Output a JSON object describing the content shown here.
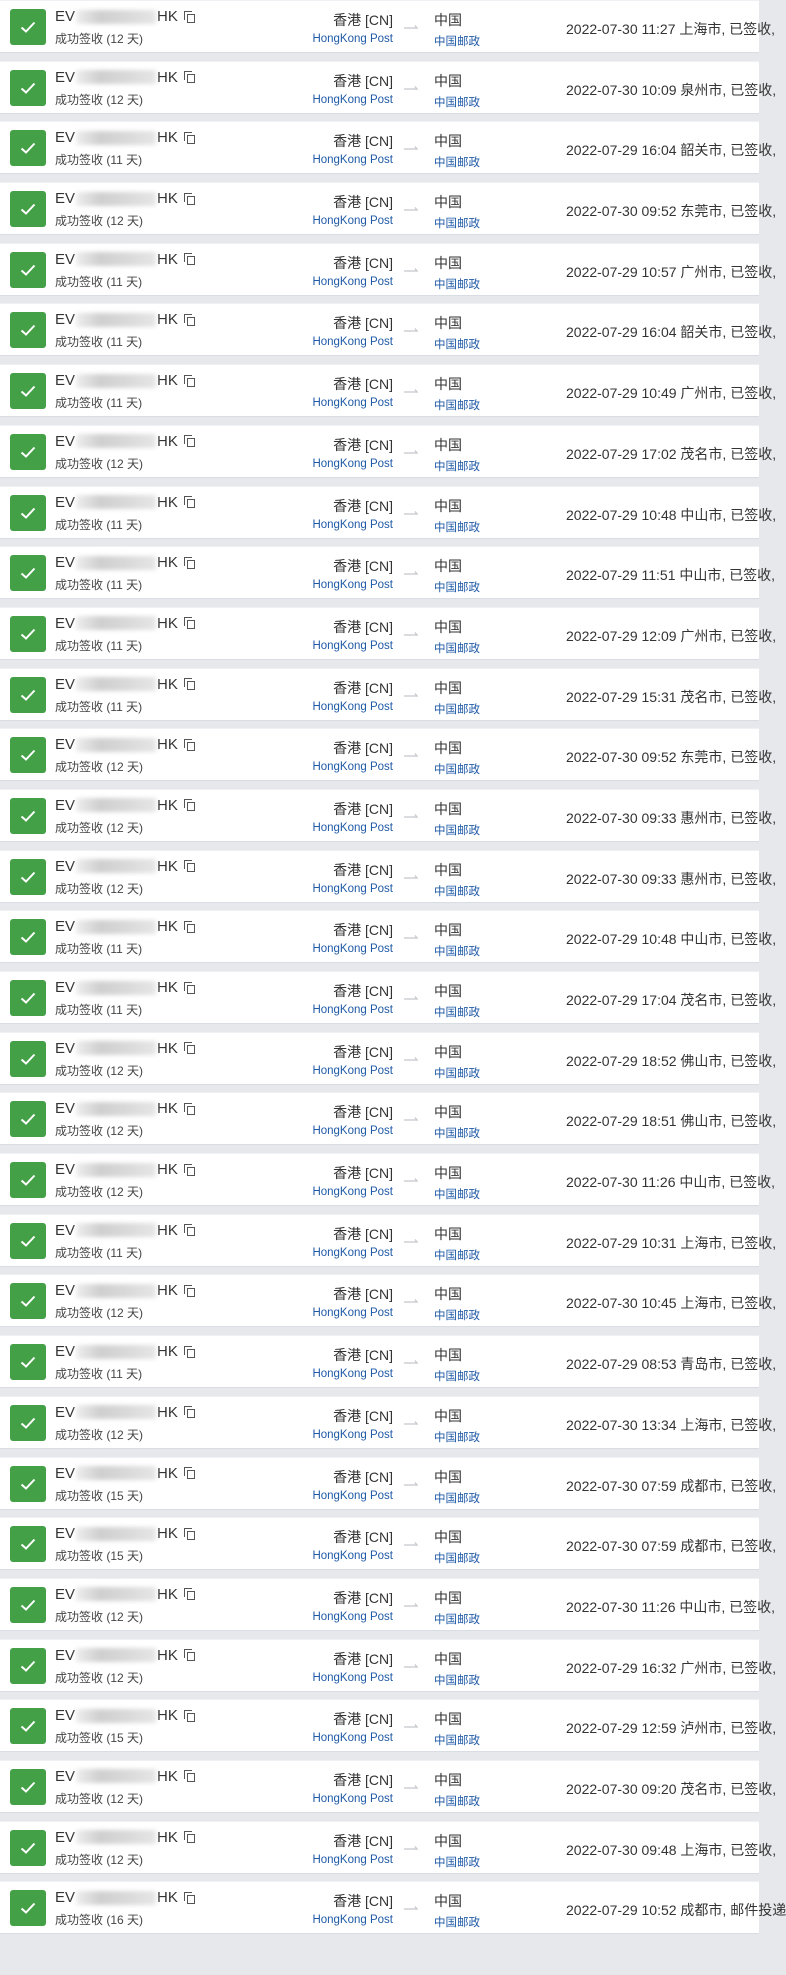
{
  "colors": {
    "status_ok": "#43a047",
    "carrier_link": "#1f5aa6"
  },
  "shipments": [
    {
      "prefix": "EV",
      "suffix": "HK",
      "status": "成功签收 (12 天)",
      "origin": "香港 [CN]",
      "origin_carrier": "HongKong Post",
      "dest": "中国",
      "dest_carrier": "中国邮政",
      "event": "2022-07-30 11:27 上海市, 已签收,"
    },
    {
      "prefix": "EV",
      "suffix": "HK",
      "status": "成功签收 (12 天)",
      "origin": "香港 [CN]",
      "origin_carrier": "HongKong Post",
      "dest": "中国",
      "dest_carrier": "中国邮政",
      "event": "2022-07-30 10:09 泉州市, 已签收,"
    },
    {
      "prefix": "EV",
      "suffix": "HK",
      "status": "成功签收 (11 天)",
      "origin": "香港 [CN]",
      "origin_carrier": "HongKong Post",
      "dest": "中国",
      "dest_carrier": "中国邮政",
      "event": "2022-07-29 16:04 韶关市, 已签收,"
    },
    {
      "prefix": "EV",
      "suffix": "HK",
      "status": "成功签收 (12 天)",
      "origin": "香港 [CN]",
      "origin_carrier": "HongKong Post",
      "dest": "中国",
      "dest_carrier": "中国邮政",
      "event": "2022-07-30 09:52 东莞市, 已签收,"
    },
    {
      "prefix": "EV",
      "suffix": "HK",
      "status": "成功签收 (11 天)",
      "origin": "香港 [CN]",
      "origin_carrier": "HongKong Post",
      "dest": "中国",
      "dest_carrier": "中国邮政",
      "event": "2022-07-29 10:57 广州市, 已签收,"
    },
    {
      "prefix": "EV",
      "suffix": "HK",
      "status": "成功签收 (11 天)",
      "origin": "香港 [CN]",
      "origin_carrier": "HongKong Post",
      "dest": "中国",
      "dest_carrier": "中国邮政",
      "event": "2022-07-29 16:04 韶关市, 已签收,"
    },
    {
      "prefix": "EV",
      "suffix": "HK",
      "status": "成功签收 (11 天)",
      "origin": "香港 [CN]",
      "origin_carrier": "HongKong Post",
      "dest": "中国",
      "dest_carrier": "中国邮政",
      "event": "2022-07-29 10:49 广州市, 已签收,"
    },
    {
      "prefix": "EV",
      "suffix": "HK",
      "status": "成功签收 (12 天)",
      "origin": "香港 [CN]",
      "origin_carrier": "HongKong Post",
      "dest": "中国",
      "dest_carrier": "中国邮政",
      "event": "2022-07-29 17:02 茂名市, 已签收,"
    },
    {
      "prefix": "EV",
      "suffix": "HK",
      "status": "成功签收 (11 天)",
      "origin": "香港 [CN]",
      "origin_carrier": "HongKong Post",
      "dest": "中国",
      "dest_carrier": "中国邮政",
      "event": "2022-07-29 10:48 中山市, 已签收,"
    },
    {
      "prefix": "EV",
      "suffix": "HK",
      "status": "成功签收 (11 天)",
      "origin": "香港 [CN]",
      "origin_carrier": "HongKong Post",
      "dest": "中国",
      "dest_carrier": "中国邮政",
      "event": "2022-07-29 11:51 中山市, 已签收,"
    },
    {
      "prefix": "EV",
      "suffix": "HK",
      "status": "成功签收 (11 天)",
      "origin": "香港 [CN]",
      "origin_carrier": "HongKong Post",
      "dest": "中国",
      "dest_carrier": "中国邮政",
      "event": "2022-07-29 12:09 广州市, 已签收,"
    },
    {
      "prefix": "EV",
      "suffix": "HK",
      "status": "成功签收 (11 天)",
      "origin": "香港 [CN]",
      "origin_carrier": "HongKong Post",
      "dest": "中国",
      "dest_carrier": "中国邮政",
      "event": "2022-07-29 15:31 茂名市, 已签收,"
    },
    {
      "prefix": "EV",
      "suffix": "HK",
      "status": "成功签收 (12 天)",
      "origin": "香港 [CN]",
      "origin_carrier": "HongKong Post",
      "dest": "中国",
      "dest_carrier": "中国邮政",
      "event": "2022-07-30 09:52 东莞市, 已签收,"
    },
    {
      "prefix": "EV",
      "suffix": "HK",
      "status": "成功签收 (12 天)",
      "origin": "香港 [CN]",
      "origin_carrier": "HongKong Post",
      "dest": "中国",
      "dest_carrier": "中国邮政",
      "event": "2022-07-30 09:33 惠州市, 已签收,"
    },
    {
      "prefix": "EV",
      "suffix": "HK",
      "status": "成功签收 (12 天)",
      "origin": "香港 [CN]",
      "origin_carrier": "HongKong Post",
      "dest": "中国",
      "dest_carrier": "中国邮政",
      "event": "2022-07-30 09:33 惠州市, 已签收,"
    },
    {
      "prefix": "EV",
      "suffix": "HK",
      "status": "成功签收 (11 天)",
      "origin": "香港 [CN]",
      "origin_carrier": "HongKong Post",
      "dest": "中国",
      "dest_carrier": "中国邮政",
      "event": "2022-07-29 10:48 中山市, 已签收,"
    },
    {
      "prefix": "EV",
      "suffix": "HK",
      "status": "成功签收 (11 天)",
      "origin": "香港 [CN]",
      "origin_carrier": "HongKong Post",
      "dest": "中国",
      "dest_carrier": "中国邮政",
      "event": "2022-07-29 17:04 茂名市, 已签收,"
    },
    {
      "prefix": "EV",
      "suffix": "HK",
      "status": "成功签收 (12 天)",
      "origin": "香港 [CN]",
      "origin_carrier": "HongKong Post",
      "dest": "中国",
      "dest_carrier": "中国邮政",
      "event": "2022-07-29 18:52 佛山市, 已签收,"
    },
    {
      "prefix": "EV",
      "suffix": "HK",
      "status": "成功签收 (12 天)",
      "origin": "香港 [CN]",
      "origin_carrier": "HongKong Post",
      "dest": "中国",
      "dest_carrier": "中国邮政",
      "event": "2022-07-29 18:51 佛山市, 已签收,"
    },
    {
      "prefix": "EV",
      "suffix": "HK",
      "status": "成功签收 (12 天)",
      "origin": "香港 [CN]",
      "origin_carrier": "HongKong Post",
      "dest": "中国",
      "dest_carrier": "中国邮政",
      "event": "2022-07-30 11:26 中山市, 已签收,"
    },
    {
      "prefix": "EV",
      "suffix": "HK",
      "status": "成功签收 (11 天)",
      "origin": "香港 [CN]",
      "origin_carrier": "HongKong Post",
      "dest": "中国",
      "dest_carrier": "中国邮政",
      "event": "2022-07-29 10:31 上海市, 已签收,"
    },
    {
      "prefix": "EV",
      "suffix": "HK",
      "status": "成功签收 (12 天)",
      "origin": "香港 [CN]",
      "origin_carrier": "HongKong Post",
      "dest": "中国",
      "dest_carrier": "中国邮政",
      "event": "2022-07-30 10:45 上海市, 已签收,"
    },
    {
      "prefix": "EV",
      "suffix": "HK",
      "status": "成功签收 (11 天)",
      "origin": "香港 [CN]",
      "origin_carrier": "HongKong Post",
      "dest": "中国",
      "dest_carrier": "中国邮政",
      "event": "2022-07-29 08:53 青岛市, 已签收,"
    },
    {
      "prefix": "EV",
      "suffix": "HK",
      "status": "成功签收 (12 天)",
      "origin": "香港 [CN]",
      "origin_carrier": "HongKong Post",
      "dest": "中国",
      "dest_carrier": "中国邮政",
      "event": "2022-07-30 13:34 上海市, 已签收,"
    },
    {
      "prefix": "EV",
      "suffix": "HK",
      "status": "成功签收 (15 天)",
      "origin": "香港 [CN]",
      "origin_carrier": "HongKong Post",
      "dest": "中国",
      "dest_carrier": "中国邮政",
      "event": "2022-07-30 07:59 成都市, 已签收,"
    },
    {
      "prefix": "EV",
      "suffix": "HK",
      "status": "成功签收 (15 天)",
      "origin": "香港 [CN]",
      "origin_carrier": "HongKong Post",
      "dest": "中国",
      "dest_carrier": "中国邮政",
      "event": "2022-07-30 07:59 成都市, 已签收,"
    },
    {
      "prefix": "EV",
      "suffix": "HK",
      "status": "成功签收 (12 天)",
      "origin": "香港 [CN]",
      "origin_carrier": "HongKong Post",
      "dest": "中国",
      "dest_carrier": "中国邮政",
      "event": "2022-07-30 11:26 中山市, 已签收,"
    },
    {
      "prefix": "EV",
      "suffix": "HK",
      "status": "成功签收 (12 天)",
      "origin": "香港 [CN]",
      "origin_carrier": "HongKong Post",
      "dest": "中国",
      "dest_carrier": "中国邮政",
      "event": "2022-07-29 16:32 广州市, 已签收,"
    },
    {
      "prefix": "EV",
      "suffix": "HK",
      "status": "成功签收 (15 天)",
      "origin": "香港 [CN]",
      "origin_carrier": "HongKong Post",
      "dest": "中国",
      "dest_carrier": "中国邮政",
      "event": "2022-07-29 12:59 泸州市, 已签收,"
    },
    {
      "prefix": "EV",
      "suffix": "HK",
      "status": "成功签收 (12 天)",
      "origin": "香港 [CN]",
      "origin_carrier": "HongKong Post",
      "dest": "中国",
      "dest_carrier": "中国邮政",
      "event": "2022-07-30 09:20 茂名市, 已签收,"
    },
    {
      "prefix": "EV",
      "suffix": "HK",
      "status": "成功签收 (12 天)",
      "origin": "香港 [CN]",
      "origin_carrier": "HongKong Post",
      "dest": "中国",
      "dest_carrier": "中国邮政",
      "event": "2022-07-30 09:48 上海市, 已签收,"
    },
    {
      "prefix": "EV",
      "suffix": "HK",
      "status": "成功签收 (16 天)",
      "origin": "香港 [CN]",
      "origin_carrier": "HongKong Post",
      "dest": "中国",
      "dest_carrier": "中国邮政",
      "event": "2022-07-29 10:52 成都市, 邮件投递"
    }
  ]
}
